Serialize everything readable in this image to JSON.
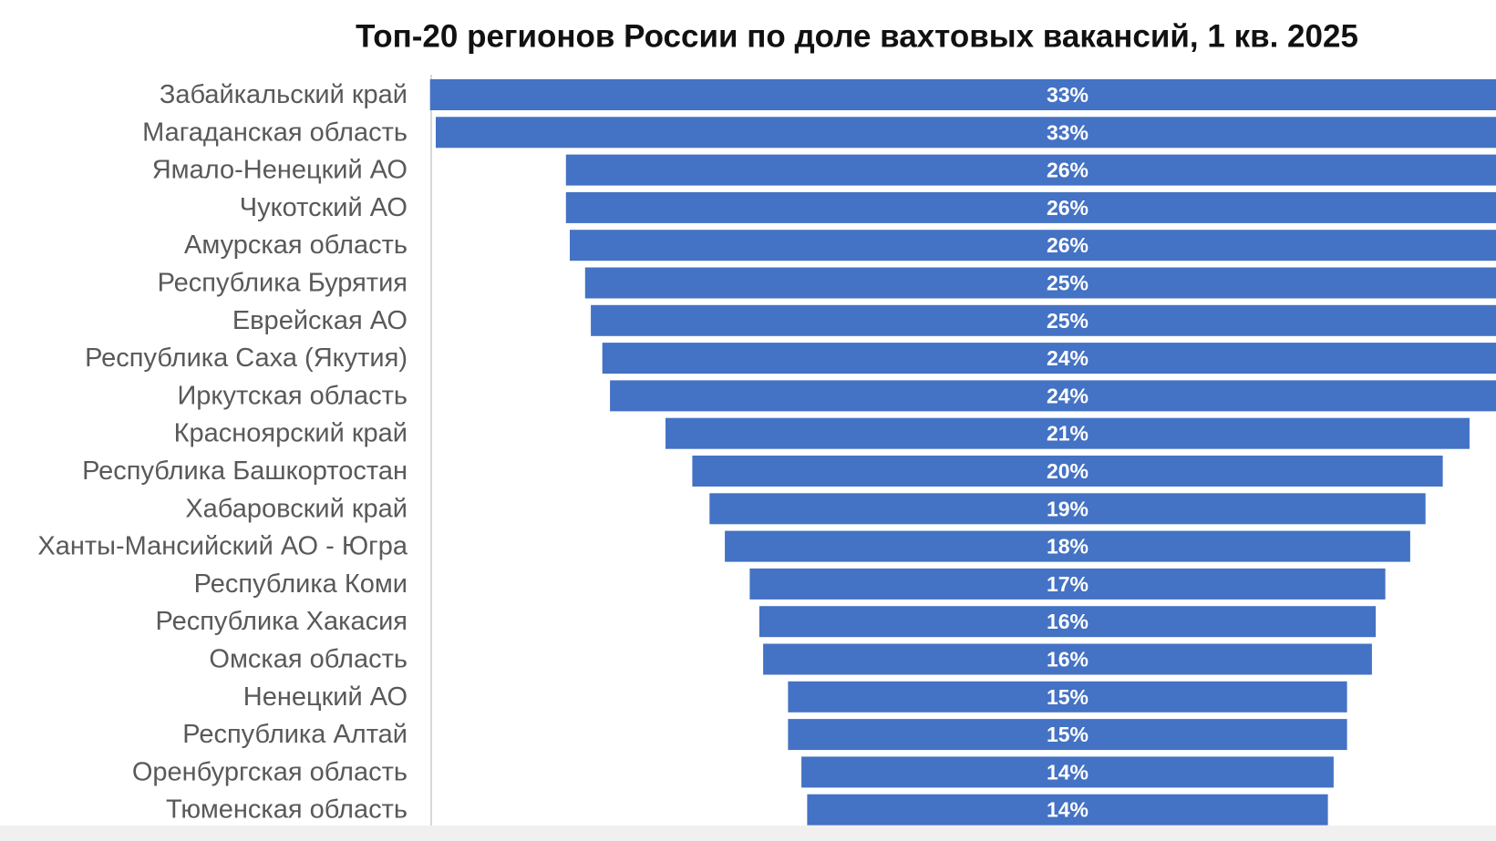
{
  "chart_data": {
    "type": "funnel",
    "title": "Топ-20 регионов России  по доле вахтовых вакансий, 1 кв. 2025",
    "categories": [
      "Забайкальский край",
      "Магаданская область",
      "Ямало-Ненецкий АО",
      "Чукотский АО",
      "Амурская область",
      "Республика Бурятия",
      "Еврейская АО",
      "Республика Саха (Якутия)",
      "Иркутская область",
      "Красноярский край",
      "Республика Башкортостан",
      "Хабаровский край",
      "Ханты-Мансийский АО - Югра",
      "Республика Коми",
      "Республика Хакасия",
      "Омская область",
      "Ненецкий АО",
      "Республика Алтай",
      "Оренбургская область",
      "Тюменская область"
    ],
    "values": [
      33.3,
      33.0,
      26.2,
      26.2,
      26.0,
      25.2,
      24.9,
      24.3,
      23.9,
      21.0,
      19.6,
      18.7,
      17.9,
      16.6,
      16.1,
      15.9,
      14.6,
      14.6,
      13.9,
      13.6
    ],
    "value_labels": [
      "33%",
      "33%",
      "26%",
      "26%",
      "26%",
      "25%",
      "25%",
      "24%",
      "24%",
      "21%",
      "20%",
      "19%",
      "18%",
      "17%",
      "16%",
      "16%",
      "15%",
      "15%",
      "14%",
      "14%"
    ],
    "color": "#4472c4"
  }
}
